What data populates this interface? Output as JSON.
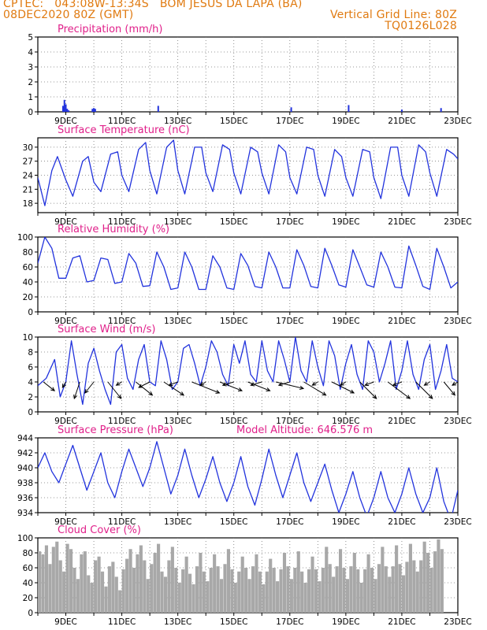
{
  "header": {
    "line1_left": "CPTEC:   043:08W-13:34S   BOM JESUS DA LAPA (BA)",
    "line2_left": "08DEC2020 80Z (GMT)",
    "line2_right": "Vertical Grid Line: 80Z",
    "line3_right": "TQ0126L028"
  },
  "colors": {
    "header": "#e07a10",
    "title": "#e0208a",
    "line": "#2233dd",
    "bar": "#2233dd",
    "cloud": "#a8a8a8",
    "arrow": "#000000"
  },
  "x_labels": [
    "9DEC",
    "11DEC",
    "13DEC",
    "15DEC",
    "17DEC",
    "19DEC",
    "21DEC",
    "23DEC"
  ],
  "chart_data": [
    {
      "type": "bar",
      "title": "Precipitation (mm/h)",
      "ylim": [
        0,
        5
      ],
      "yticks": [
        "0",
        "1",
        "2",
        "3",
        "4",
        "5"
      ],
      "x_days": [
        8.9,
        8.95,
        9.0,
        9.05,
        9.1,
        9.95,
        10.0,
        10.05,
        12.3,
        17.05,
        19.1,
        21.0,
        22.4
      ],
      "values": [
        0.4,
        0.8,
        0.5,
        0.2,
        0.1,
        0.2,
        0.25,
        0.2,
        0.4,
        0.3,
        0.45,
        0.15,
        0.25
      ]
    },
    {
      "type": "line",
      "title": "Surface Temperature (nC)",
      "ylim": [
        16,
        32
      ],
      "yticks": [
        "18",
        "21",
        "24",
        "27",
        "30",
        "33"
      ],
      "ytick_values": [
        18,
        21,
        24,
        27,
        30,
        33
      ],
      "x_days": [
        8.0,
        8.25,
        8.5,
        8.7,
        9.0,
        9.25,
        9.6,
        9.8,
        10.0,
        10.25,
        10.6,
        10.85,
        11.0,
        11.25,
        11.6,
        11.85,
        12.0,
        12.25,
        12.6,
        12.85,
        13.0,
        13.25,
        13.6,
        13.85,
        14.0,
        14.25,
        14.6,
        14.85,
        15.0,
        15.25,
        15.6,
        15.85,
        16.0,
        16.25,
        16.6,
        16.85,
        17.0,
        17.25,
        17.6,
        17.85,
        18.0,
        18.25,
        18.6,
        18.85,
        19.0,
        19.25,
        19.6,
        19.85,
        20.0,
        20.25,
        20.6,
        20.85,
        21.0,
        21.25,
        21.6,
        21.85,
        22.0,
        22.25,
        22.6,
        22.85,
        23.0
      ],
      "values": [
        23.5,
        17.5,
        25.0,
        28.0,
        23.0,
        19.5,
        27.0,
        28.0,
        22.5,
        20.5,
        28.5,
        29.0,
        24.0,
        20.5,
        29.5,
        31.0,
        25.0,
        20.0,
        30.0,
        31.5,
        25.0,
        20.0,
        30.0,
        30.0,
        24.5,
        20.5,
        30.5,
        29.5,
        24.5,
        20.0,
        30.0,
        29.0,
        24.5,
        20.0,
        30.5,
        29.0,
        23.5,
        20.0,
        30.0,
        29.5,
        24.0,
        19.5,
        29.5,
        28.0,
        23.5,
        19.5,
        29.5,
        29.0,
        23.5,
        19.0,
        30.0,
        30.0,
        24.0,
        19.5,
        30.5,
        29.0,
        24.5,
        19.5,
        29.5,
        28.5,
        27.5
      ]
    },
    {
      "type": "line",
      "title": "Relative Humidity (%)",
      "ylim": [
        0,
        100
      ],
      "yticks": [
        "0",
        "20",
        "40",
        "60",
        "80",
        "100"
      ],
      "ytick_values": [
        0,
        20,
        40,
        60,
        80,
        100
      ],
      "x_days": [
        8.0,
        8.25,
        8.5,
        8.75,
        9.0,
        9.25,
        9.5,
        9.75,
        10.0,
        10.25,
        10.5,
        10.75,
        11.0,
        11.25,
        11.5,
        11.75,
        12.0,
        12.25,
        12.5,
        12.75,
        13.0,
        13.25,
        13.5,
        13.75,
        14.0,
        14.25,
        14.5,
        14.75,
        15.0,
        15.25,
        15.5,
        15.75,
        16.0,
        16.25,
        16.5,
        16.75,
        17.0,
        17.25,
        17.5,
        17.75,
        18.0,
        18.25,
        18.5,
        18.75,
        19.0,
        19.25,
        19.5,
        19.75,
        20.0,
        20.25,
        20.5,
        20.75,
        21.0,
        21.25,
        21.5,
        21.75,
        22.0,
        22.25,
        22.5,
        22.75,
        23.0
      ],
      "values": [
        65,
        100,
        85,
        45,
        45,
        72,
        75,
        40,
        42,
        72,
        70,
        38,
        40,
        78,
        65,
        34,
        35,
        80,
        60,
        30,
        32,
        80,
        60,
        30,
        30,
        75,
        60,
        32,
        30,
        78,
        62,
        34,
        32,
        80,
        60,
        32,
        32,
        83,
        62,
        34,
        32,
        85,
        62,
        36,
        33,
        83,
        60,
        36,
        33,
        80,
        60,
        33,
        32,
        88,
        62,
        34,
        30,
        85,
        60,
        32,
        40
      ]
    },
    {
      "type": "line",
      "title": "Surface Wind (m/s)",
      "ylim": [
        0,
        10
      ],
      "yticks": [
        "0",
        "2",
        "4",
        "6",
        "8",
        "10"
      ],
      "ytick_values": [
        0,
        2,
        4,
        6,
        8,
        10
      ],
      "x_days": [
        8.0,
        8.3,
        8.6,
        8.8,
        9.0,
        9.2,
        9.4,
        9.6,
        9.8,
        10.0,
        10.2,
        10.4,
        10.6,
        10.8,
        11.0,
        11.2,
        11.4,
        11.6,
        11.8,
        12.0,
        12.2,
        12.4,
        12.6,
        12.8,
        13.0,
        13.2,
        13.4,
        13.6,
        13.8,
        14.0,
        14.2,
        14.4,
        14.6,
        14.8,
        15.0,
        15.2,
        15.4,
        15.6,
        15.8,
        16.0,
        16.2,
        16.4,
        16.6,
        16.8,
        17.0,
        17.2,
        17.4,
        17.6,
        17.8,
        18.0,
        18.2,
        18.4,
        18.6,
        18.8,
        19.0,
        19.2,
        19.4,
        19.6,
        19.8,
        20.0,
        20.2,
        20.4,
        20.6,
        20.8,
        21.0,
        21.2,
        21.4,
        21.6,
        21.8,
        22.0,
        22.2,
        22.4,
        22.6,
        22.8,
        23.0
      ],
      "values": [
        3.5,
        4.5,
        7.0,
        2.0,
        4.0,
        9.5,
        5.0,
        1.0,
        6.5,
        8.5,
        5.5,
        3.0,
        1.0,
        8.0,
        9.0,
        4.5,
        3.0,
        7.0,
        9.0,
        4.0,
        3.5,
        9.5,
        7.0,
        3.0,
        4.0,
        8.5,
        9.0,
        6.5,
        3.5,
        6.0,
        9.5,
        8.0,
        5.0,
        3.5,
        9.0,
        6.5,
        9.5,
        5.0,
        4.0,
        9.5,
        5.5,
        4.0,
        9.5,
        7.0,
        4.0,
        10.0,
        5.5,
        4.0,
        9.5,
        6.0,
        3.5,
        9.5,
        7.5,
        3.0,
        6.5,
        9.0,
        5.0,
        3.0,
        9.5,
        8.0,
        4.0,
        6.5,
        9.5,
        3.0,
        5.5,
        9.5,
        5.0,
        3.0,
        7.0,
        9.0,
        3.0,
        5.5,
        9.0,
        4.5,
        4.0
      ],
      "vectors": {
        "x_days": [
          8.2,
          9.0,
          9.5,
          10.0,
          10.5,
          11.0,
          11.5,
          12.0,
          12.5,
          13.0,
          13.5,
          14.0,
          14.5,
          15.0,
          15.5,
          16.0,
          16.5,
          17.0,
          17.5,
          18.0,
          18.5,
          19.0,
          19.5,
          20.0,
          20.5,
          21.0,
          21.5,
          22.0,
          22.5,
          23.0
        ],
        "u": [
          1.0,
          -0.3,
          -0.5,
          -0.8,
          1.2,
          -0.5,
          1.5,
          -1.0,
          1.8,
          -0.8,
          2.5,
          -0.5,
          2.0,
          -1.0,
          2.0,
          -1.0,
          2.5,
          -1.0,
          2.0,
          -0.5,
          2.0,
          -0.5,
          1.5,
          -0.8,
          2.0,
          -0.8,
          1.5,
          -0.5,
          1.0,
          -0.5
        ],
        "v": [
          0.8,
          0.5,
          1.5,
          1.0,
          1.5,
          0.3,
          1.2,
          0.5,
          1.2,
          0.3,
          1.0,
          0.3,
          0.8,
          0.3,
          0.8,
          0.3,
          0.6,
          0.3,
          1.2,
          0.3,
          1.0,
          0.3,
          1.5,
          0.3,
          1.5,
          0.3,
          1.5,
          0.3,
          1.2,
          0.3
        ]
      }
    },
    {
      "type": "line",
      "title": "Surface Pressure (hPa)",
      "annotation": "Model Altitude: 646.576  m",
      "ylim": [
        934,
        944
      ],
      "yticks": [
        "934",
        "936",
        "938",
        "940",
        "942",
        "944"
      ],
      "ytick_values": [
        934,
        936,
        938,
        940,
        942,
        944
      ],
      "x_days": [
        8.0,
        8.25,
        8.5,
        8.75,
        9.0,
        9.25,
        9.5,
        9.75,
        10.0,
        10.25,
        10.5,
        10.75,
        11.0,
        11.25,
        11.5,
        11.75,
        12.0,
        12.25,
        12.5,
        12.75,
        13.0,
        13.25,
        13.5,
        13.75,
        14.0,
        14.25,
        14.5,
        14.75,
        15.0,
        15.25,
        15.5,
        15.75,
        16.0,
        16.25,
        16.5,
        16.75,
        17.0,
        17.25,
        17.5,
        17.75,
        18.0,
        18.25,
        18.5,
        18.75,
        19.0,
        19.25,
        19.5,
        19.75,
        20.0,
        20.25,
        20.5,
        20.75,
        21.0,
        21.25,
        21.5,
        21.75,
        22.0,
        22.25,
        22.5,
        22.75,
        23.0
      ],
      "values": [
        940.0,
        942.0,
        939.5,
        938.0,
        940.5,
        943.0,
        940.0,
        937.0,
        939.5,
        942.0,
        938.0,
        936.0,
        939.5,
        942.5,
        940.0,
        937.5,
        940.0,
        943.5,
        940.0,
        936.5,
        939.0,
        942.5,
        939.0,
        936.0,
        938.5,
        941.5,
        938.0,
        935.5,
        938.0,
        941.5,
        937.5,
        935.0,
        938.5,
        942.5,
        939.0,
        936.0,
        939.0,
        942.0,
        938.0,
        935.5,
        938.0,
        940.5,
        937.0,
        934.0,
        936.5,
        939.5,
        936.0,
        933.5,
        936.0,
        939.5,
        936.0,
        934.0,
        936.5,
        940.0,
        936.5,
        934.0,
        936.0,
        940.0,
        935.5,
        933.0,
        937.0
      ]
    },
    {
      "type": "bar",
      "title": "Cloud Cover (%)",
      "ylim": [
        0,
        100
      ],
      "yticks": [
        "0",
        "20",
        "40",
        "60",
        "80",
        "100"
      ],
      "ytick_values": [
        0,
        20,
        40,
        60,
        80,
        100
      ],
      "x_start": 8.0,
      "x_step": 0.125,
      "values": [
        82,
        78,
        90,
        65,
        88,
        95,
        70,
        55,
        92,
        85,
        60,
        45,
        78,
        82,
        50,
        40,
        70,
        75,
        55,
        35,
        62,
        68,
        48,
        30,
        58,
        72,
        85,
        60,
        78,
        90,
        70,
        45,
        65,
        80,
        92,
        55,
        48,
        70,
        88,
        60,
        40,
        58,
        75,
        52,
        38,
        62,
        80,
        55,
        42,
        60,
        78,
        62,
        45,
        65,
        85,
        58,
        40,
        55,
        75,
        60,
        45,
        62,
        78,
        55,
        38,
        55,
        72,
        60,
        42,
        58,
        80,
        62,
        45,
        60,
        82,
        55,
        40,
        58,
        75,
        58,
        42,
        60,
        88,
        65,
        48,
        62,
        85,
        60,
        45,
        62,
        80,
        58,
        40,
        58,
        78,
        60,
        45,
        65,
        88,
        62,
        48,
        62,
        90,
        65,
        50,
        68,
        92,
        70,
        55,
        70,
        95,
        80,
        60,
        82,
        98,
        85
      ]
    }
  ]
}
